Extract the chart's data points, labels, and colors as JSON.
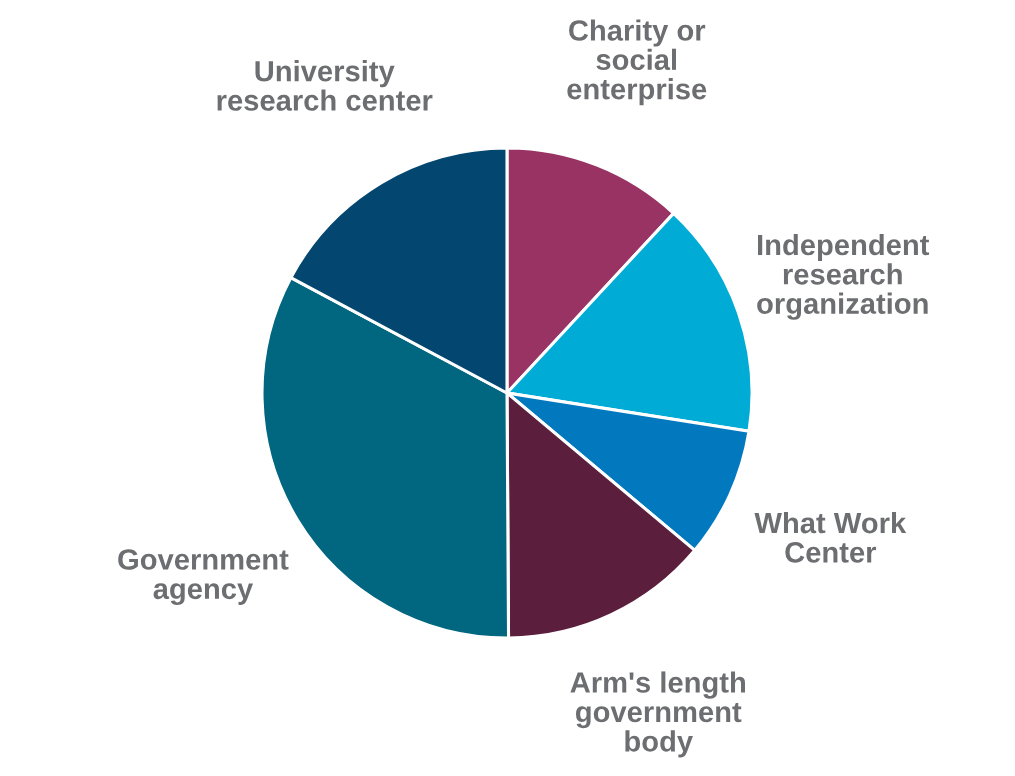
{
  "chart_data": {
    "type": "pie",
    "categories": [
      "Charity or\nsocial\nenterprise",
      "Independent\nresearch\norganization",
      "What Work\nCenter",
      "Arm's length\ngovernment\nbody",
      "Government\nagency",
      "University\nresearch center"
    ],
    "values": [
      11.9,
      15.6,
      8.6,
      13.8,
      32.9,
      17.2
    ],
    "colors": [
      "#983363",
      "#00abd5",
      "#0279bf",
      "#5b1f3d",
      "#016680",
      "#034770"
    ],
    "legend": false
  }
}
